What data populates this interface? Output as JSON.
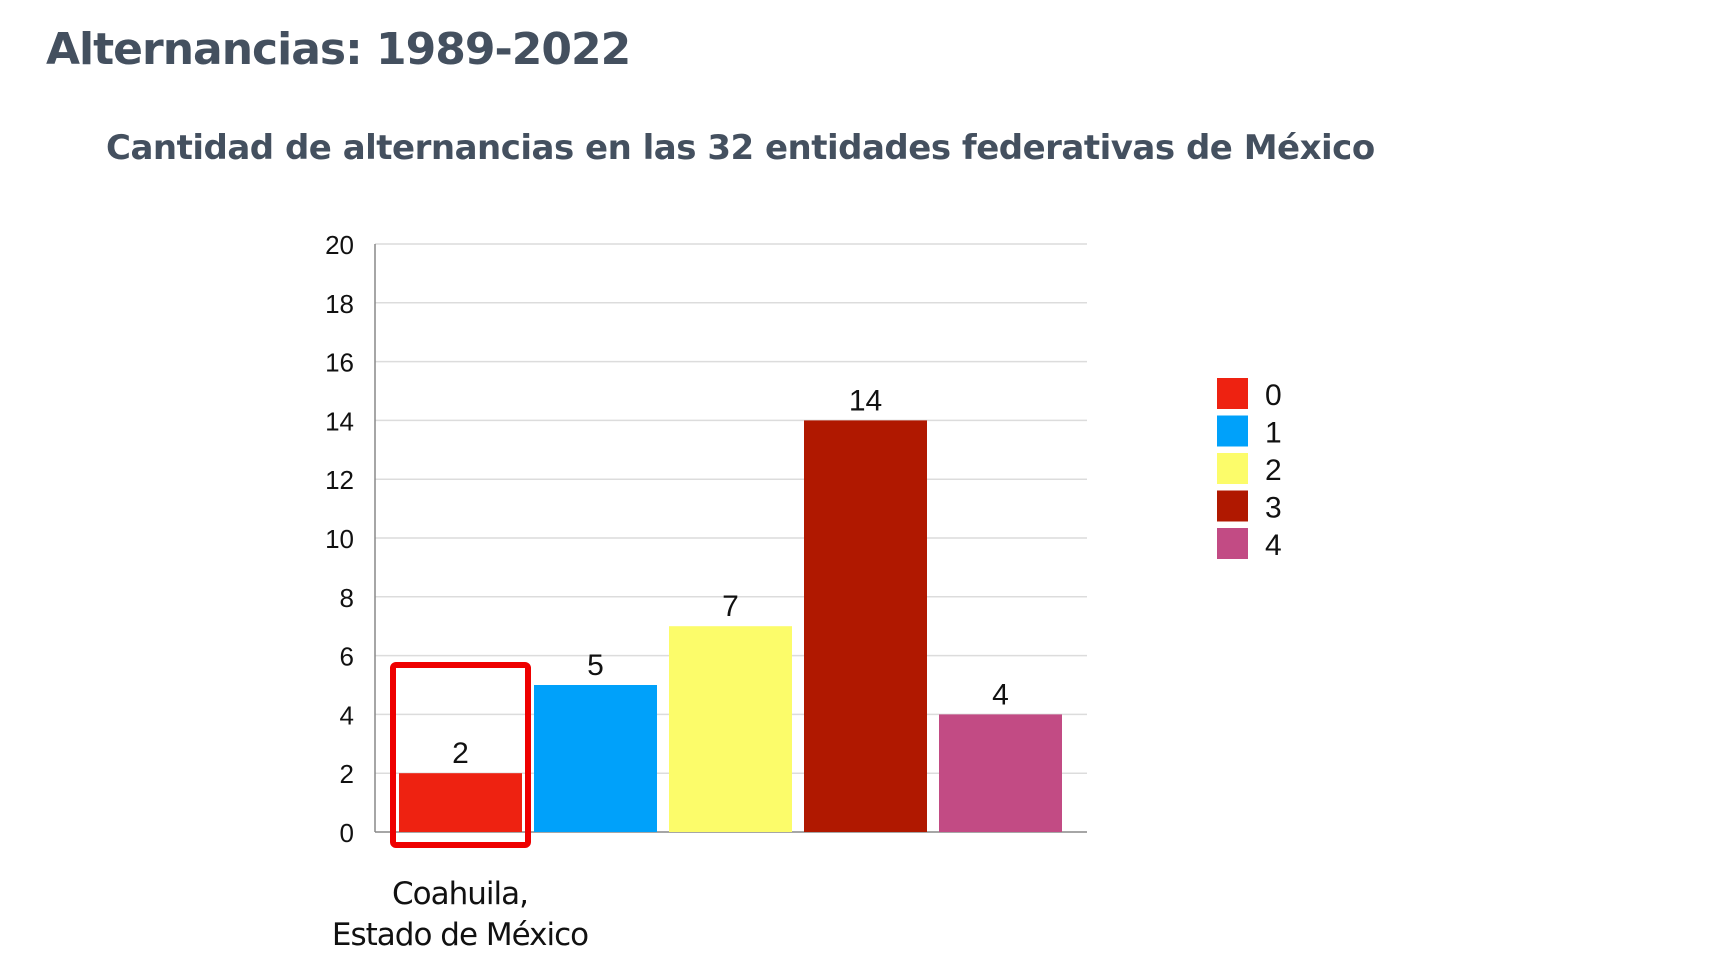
{
  "header": {
    "title": "Alternancias: 1989-2022",
    "subtitle": "Cantidad de alternancias en las 32 entidades federativas de México"
  },
  "chart_data": {
    "type": "bar",
    "title": "Cantidad de alternancias en las 32 entidades federativas de México",
    "xlabel": "",
    "ylabel": "",
    "ylim": [
      0,
      20
    ],
    "yticks": [
      0,
      2,
      4,
      6,
      8,
      10,
      12,
      14,
      16,
      18,
      20
    ],
    "grid": true,
    "legend_position": "right",
    "series": [
      {
        "name": "0",
        "value": 2,
        "color": "#ee2211"
      },
      {
        "name": "1",
        "value": 5,
        "color": "#00a1fa"
      },
      {
        "name": "2",
        "value": 7,
        "color": "#fcfc6a"
      },
      {
        "name": "3",
        "value": 14,
        "color": "#b01800"
      },
      {
        "name": "4",
        "value": 4,
        "color": "#c24b84"
      }
    ],
    "annotation": {
      "highlight_series": "0",
      "highlight_color": "#ee0000",
      "label_line1": "Coahuila,",
      "label_line2": "Estado de México"
    }
  }
}
